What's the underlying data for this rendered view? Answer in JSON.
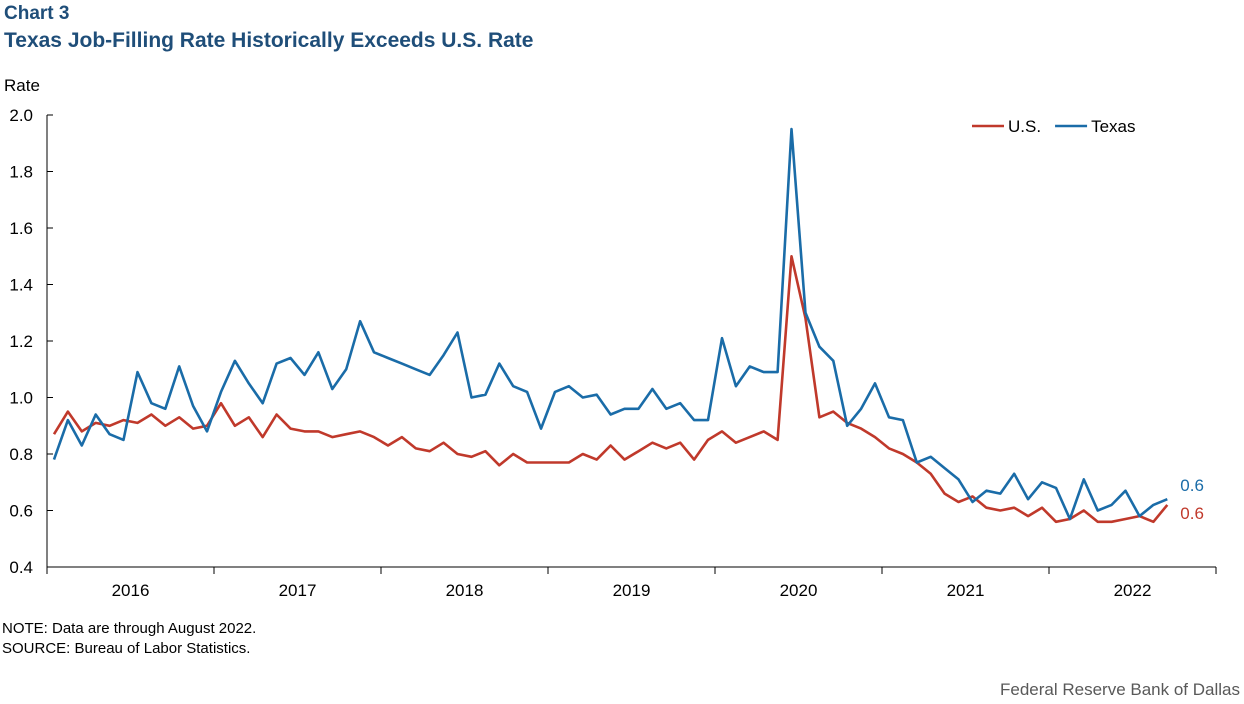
{
  "header": {
    "chart_label": "Chart 3",
    "title": "Texas Job-Filling Rate Historically Exceeds U.S. Rate"
  },
  "footer": {
    "note": "NOTE: Data are through August 2022.",
    "source": "SOURCE: Bureau of Labor Statistics.",
    "credit": "Federal Reserve Bank of Dallas"
  },
  "colors": {
    "us": "#C0392B",
    "texas": "#1A6CA8",
    "title": "#1F4E79"
  },
  "chart_data": {
    "type": "line",
    "title": "Texas Job-Filling Rate Historically Exceeds U.S. Rate",
    "xlabel": "",
    "ylabel": "Rate",
    "ylim": [
      0.4,
      2.0
    ],
    "yticks": [
      "0.4",
      "0.6",
      "0.8",
      "1.0",
      "1.2",
      "1.4",
      "1.6",
      "1.8",
      "2.0"
    ],
    "xticks": [
      "2016",
      "2017",
      "2018",
      "2019",
      "2020",
      "2021",
      "2022"
    ],
    "x_start": "2016-01",
    "x_end": "2022-08",
    "grid": false,
    "legend_position": "top-right",
    "series": [
      {
        "name": "U.S.",
        "color": "#C0392B",
        "end_label": "0.6",
        "values": [
          0.87,
          0.95,
          0.88,
          0.91,
          0.9,
          0.92,
          0.91,
          0.94,
          0.9,
          0.93,
          0.89,
          0.9,
          0.98,
          0.9,
          0.93,
          0.86,
          0.94,
          0.89,
          0.88,
          0.88,
          0.86,
          0.87,
          0.88,
          0.86,
          0.83,
          0.86,
          0.82,
          0.81,
          0.84,
          0.8,
          0.79,
          0.81,
          0.76,
          0.8,
          0.77,
          0.77,
          0.77,
          0.77,
          0.8,
          0.78,
          0.83,
          0.78,
          0.81,
          0.84,
          0.82,
          0.84,
          0.78,
          0.85,
          0.88,
          0.84,
          0.86,
          0.88,
          0.85,
          1.5,
          1.28,
          0.93,
          0.95,
          0.91,
          0.89,
          0.86,
          0.82,
          0.8,
          0.77,
          0.73,
          0.66,
          0.63,
          0.65,
          0.61,
          0.6,
          0.61,
          0.58,
          0.61,
          0.56,
          0.57,
          0.6,
          0.56,
          0.56,
          0.57,
          0.58,
          0.56,
          0.62
        ]
      },
      {
        "name": "Texas",
        "color": "#1A6CA8",
        "end_label": "0.6",
        "values": [
          0.78,
          0.92,
          0.83,
          0.94,
          0.87,
          0.85,
          1.09,
          0.98,
          0.96,
          1.11,
          0.97,
          0.88,
          1.02,
          1.13,
          1.05,
          0.98,
          1.12,
          1.14,
          1.08,
          1.16,
          1.03,
          1.1,
          1.27,
          1.16,
          1.14,
          1.12,
          1.1,
          1.08,
          1.15,
          1.23,
          1.0,
          1.01,
          1.12,
          1.04,
          1.02,
          0.89,
          1.02,
          1.04,
          1.0,
          1.01,
          0.94,
          0.96,
          0.96,
          1.03,
          0.96,
          0.98,
          0.92,
          0.92,
          1.21,
          1.04,
          1.11,
          1.09,
          1.09,
          1.95,
          1.3,
          1.18,
          1.13,
          0.9,
          0.96,
          1.05,
          0.93,
          0.92,
          0.77,
          0.79,
          0.75,
          0.71,
          0.63,
          0.67,
          0.66,
          0.73,
          0.64,
          0.7,
          0.68,
          0.57,
          0.71,
          0.6,
          0.62,
          0.67,
          0.58,
          0.62,
          0.64
        ]
      }
    ]
  }
}
